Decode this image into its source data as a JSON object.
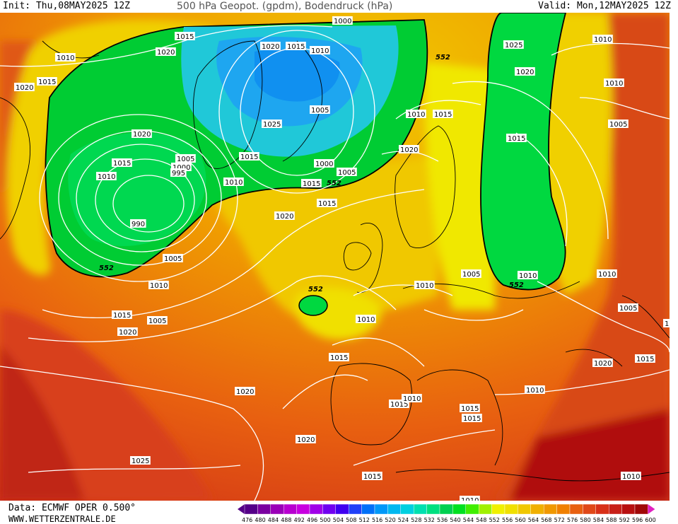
{
  "header": {
    "init": "Init: Thu,08MAY2025 12Z",
    "title": "500 hPa Geopot. (gpdm), Bodendruck (hPa)",
    "valid": "Valid: Mon,12MAY2025 12Z"
  },
  "footer": {
    "data_source": "Data: ECMWF OPER 0.500°",
    "website": "WWW.WETTERZENTRALE.DE"
  },
  "colors": {
    "ocean_low": "#00cc33",
    "ocean_mid": "#00e040",
    "cold_core": "#1ea6f0",
    "yellow": "#f0f000",
    "orange": "#f0a000",
    "red": "#d8401a",
    "dark_red": "#b01010"
  },
  "legend": {
    "values": [
      "476",
      "480",
      "484",
      "488",
      "492",
      "496",
      "500",
      "504",
      "508",
      "512",
      "516",
      "520",
      "524",
      "528",
      "532",
      "536",
      "540",
      "544",
      "548",
      "552",
      "556",
      "560",
      "564",
      "568",
      "572",
      "576",
      "580",
      "584",
      "588",
      "592",
      "596",
      "600"
    ],
    "colors": [
      "#550088",
      "#7a00a0",
      "#9a00b8",
      "#b800d0",
      "#c800e0",
      "#a000e8",
      "#7000f0",
      "#4000f0",
      "#2040f8",
      "#0070f8",
      "#0098f8",
      "#00b8f0",
      "#00d0e0",
      "#00e0b0",
      "#00e080",
      "#00d050",
      "#00e020",
      "#40ee00",
      "#a0f000",
      "#f0f000",
      "#f0e000",
      "#f0c800",
      "#f0b000",
      "#f09800",
      "#f08000",
      "#e86010",
      "#e04818",
      "#d83018",
      "#c82018",
      "#b81010",
      "#a00808",
      "#e020c0"
    ]
  },
  "pressure_labels": [
    {
      "text": "1015"
    },
    {
      "text": "1020"
    },
    {
      "text": "1010"
    },
    {
      "text": "1020"
    },
    {
      "text": "1015"
    },
    {
      "text": "1020"
    },
    {
      "text": "1015"
    },
    {
      "text": "1010"
    },
    {
      "text": "1005"
    },
    {
      "text": "1000"
    },
    {
      "text": "995"
    },
    {
      "text": "990"
    },
    {
      "text": "1005"
    },
    {
      "text": "1010"
    },
    {
      "text": "1015"
    },
    {
      "text": "1020"
    },
    {
      "text": "1020"
    },
    {
      "text": "1015"
    },
    {
      "text": "1010"
    },
    {
      "text": "1000"
    },
    {
      "text": "1010"
    },
    {
      "text": "1015"
    },
    {
      "text": "1025"
    },
    {
      "text": "1005"
    },
    {
      "text": "1000"
    },
    {
      "text": "1005"
    },
    {
      "text": "1010"
    },
    {
      "text": "1015"
    },
    {
      "text": "1020"
    },
    {
      "text": "1025"
    },
    {
      "text": "1020"
    },
    {
      "text": "1015"
    },
    {
      "text": "1010"
    },
    {
      "text": "1015"
    },
    {
      "text": "1010"
    },
    {
      "text": "1005"
    },
    {
      "text": "1020"
    },
    {
      "text": "1015"
    },
    {
      "text": "1010"
    },
    {
      "text": "1005"
    },
    {
      "text": "1010"
    },
    {
      "text": "1005"
    },
    {
      "text": "1010"
    },
    {
      "text": "1010"
    },
    {
      "text": "1015"
    },
    {
      "text": "1015"
    },
    {
      "text": "1015"
    },
    {
      "text": "1020"
    },
    {
      "text": "1025"
    },
    {
      "text": "1020"
    },
    {
      "text": "1015"
    },
    {
      "text": "1010"
    },
    {
      "text": "1010"
    },
    {
      "text": "1015"
    },
    {
      "text": "1005"
    },
    {
      "text": "1010"
    },
    {
      "text": "1020"
    },
    {
      "text": "1015"
    },
    {
      "text": "1010"
    },
    {
      "text": "1005"
    }
  ],
  "geopot_labels": [
    {
      "text": "552"
    },
    {
      "text": "552"
    },
    {
      "text": "552"
    },
    {
      "text": "552"
    },
    {
      "text": "552"
    }
  ]
}
